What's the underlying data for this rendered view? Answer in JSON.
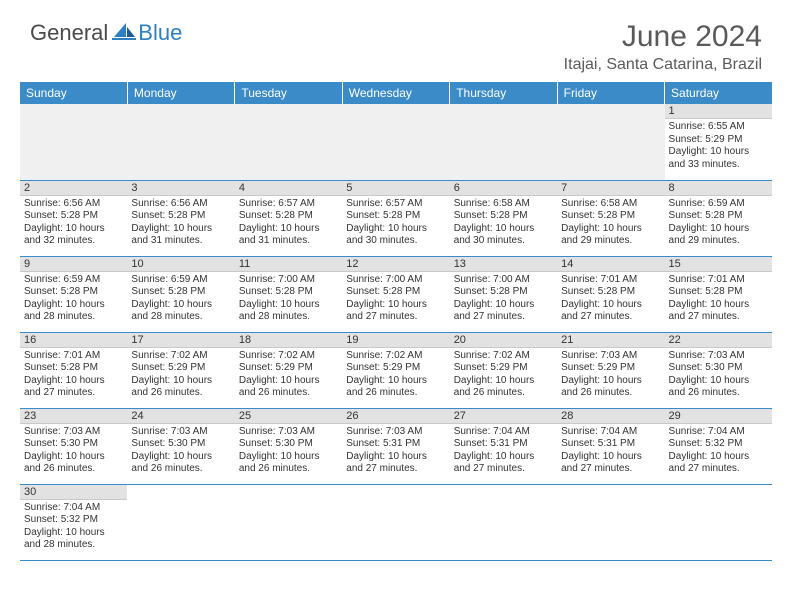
{
  "logo": {
    "general": "General",
    "blue": "Blue"
  },
  "title": "June 2024",
  "location": "Itajai, Santa Catarina, Brazil",
  "weekdays": [
    "Sunday",
    "Monday",
    "Tuesday",
    "Wednesday",
    "Thursday",
    "Friday",
    "Saturday"
  ],
  "header_bg": "#3b8bc9",
  "header_fg": "#ffffff",
  "daynum_bg": "#e2e2e2",
  "rule_color": "#3b8bc9",
  "weeks": [
    [
      null,
      null,
      null,
      null,
      null,
      null,
      {
        "n": "1",
        "sr": "6:55 AM",
        "ss": "5:29 PM",
        "dl": "10 hours and 33 minutes."
      }
    ],
    [
      {
        "n": "2",
        "sr": "6:56 AM",
        "ss": "5:28 PM",
        "dl": "10 hours and 32 minutes."
      },
      {
        "n": "3",
        "sr": "6:56 AM",
        "ss": "5:28 PM",
        "dl": "10 hours and 31 minutes."
      },
      {
        "n": "4",
        "sr": "6:57 AM",
        "ss": "5:28 PM",
        "dl": "10 hours and 31 minutes."
      },
      {
        "n": "5",
        "sr": "6:57 AM",
        "ss": "5:28 PM",
        "dl": "10 hours and 30 minutes."
      },
      {
        "n": "6",
        "sr": "6:58 AM",
        "ss": "5:28 PM",
        "dl": "10 hours and 30 minutes."
      },
      {
        "n": "7",
        "sr": "6:58 AM",
        "ss": "5:28 PM",
        "dl": "10 hours and 29 minutes."
      },
      {
        "n": "8",
        "sr": "6:59 AM",
        "ss": "5:28 PM",
        "dl": "10 hours and 29 minutes."
      }
    ],
    [
      {
        "n": "9",
        "sr": "6:59 AM",
        "ss": "5:28 PM",
        "dl": "10 hours and 28 minutes."
      },
      {
        "n": "10",
        "sr": "6:59 AM",
        "ss": "5:28 PM",
        "dl": "10 hours and 28 minutes."
      },
      {
        "n": "11",
        "sr": "7:00 AM",
        "ss": "5:28 PM",
        "dl": "10 hours and 28 minutes."
      },
      {
        "n": "12",
        "sr": "7:00 AM",
        "ss": "5:28 PM",
        "dl": "10 hours and 27 minutes."
      },
      {
        "n": "13",
        "sr": "7:00 AM",
        "ss": "5:28 PM",
        "dl": "10 hours and 27 minutes."
      },
      {
        "n": "14",
        "sr": "7:01 AM",
        "ss": "5:28 PM",
        "dl": "10 hours and 27 minutes."
      },
      {
        "n": "15",
        "sr": "7:01 AM",
        "ss": "5:28 PM",
        "dl": "10 hours and 27 minutes."
      }
    ],
    [
      {
        "n": "16",
        "sr": "7:01 AM",
        "ss": "5:28 PM",
        "dl": "10 hours and 27 minutes."
      },
      {
        "n": "17",
        "sr": "7:02 AM",
        "ss": "5:29 PM",
        "dl": "10 hours and 26 minutes."
      },
      {
        "n": "18",
        "sr": "7:02 AM",
        "ss": "5:29 PM",
        "dl": "10 hours and 26 minutes."
      },
      {
        "n": "19",
        "sr": "7:02 AM",
        "ss": "5:29 PM",
        "dl": "10 hours and 26 minutes."
      },
      {
        "n": "20",
        "sr": "7:02 AM",
        "ss": "5:29 PM",
        "dl": "10 hours and 26 minutes."
      },
      {
        "n": "21",
        "sr": "7:03 AM",
        "ss": "5:29 PM",
        "dl": "10 hours and 26 minutes."
      },
      {
        "n": "22",
        "sr": "7:03 AM",
        "ss": "5:30 PM",
        "dl": "10 hours and 26 minutes."
      }
    ],
    [
      {
        "n": "23",
        "sr": "7:03 AM",
        "ss": "5:30 PM",
        "dl": "10 hours and 26 minutes."
      },
      {
        "n": "24",
        "sr": "7:03 AM",
        "ss": "5:30 PM",
        "dl": "10 hours and 26 minutes."
      },
      {
        "n": "25",
        "sr": "7:03 AM",
        "ss": "5:30 PM",
        "dl": "10 hours and 26 minutes."
      },
      {
        "n": "26",
        "sr": "7:03 AM",
        "ss": "5:31 PM",
        "dl": "10 hours and 27 minutes."
      },
      {
        "n": "27",
        "sr": "7:04 AM",
        "ss": "5:31 PM",
        "dl": "10 hours and 27 minutes."
      },
      {
        "n": "28",
        "sr": "7:04 AM",
        "ss": "5:31 PM",
        "dl": "10 hours and 27 minutes."
      },
      {
        "n": "29",
        "sr": "7:04 AM",
        "ss": "5:32 PM",
        "dl": "10 hours and 27 minutes."
      }
    ],
    [
      {
        "n": "30",
        "sr": "7:04 AM",
        "ss": "5:32 PM",
        "dl": "10 hours and 28 minutes."
      },
      null,
      null,
      null,
      null,
      null,
      null
    ]
  ],
  "labels": {
    "sunrise": "Sunrise:",
    "sunset": "Sunset:",
    "daylight": "Daylight:"
  }
}
